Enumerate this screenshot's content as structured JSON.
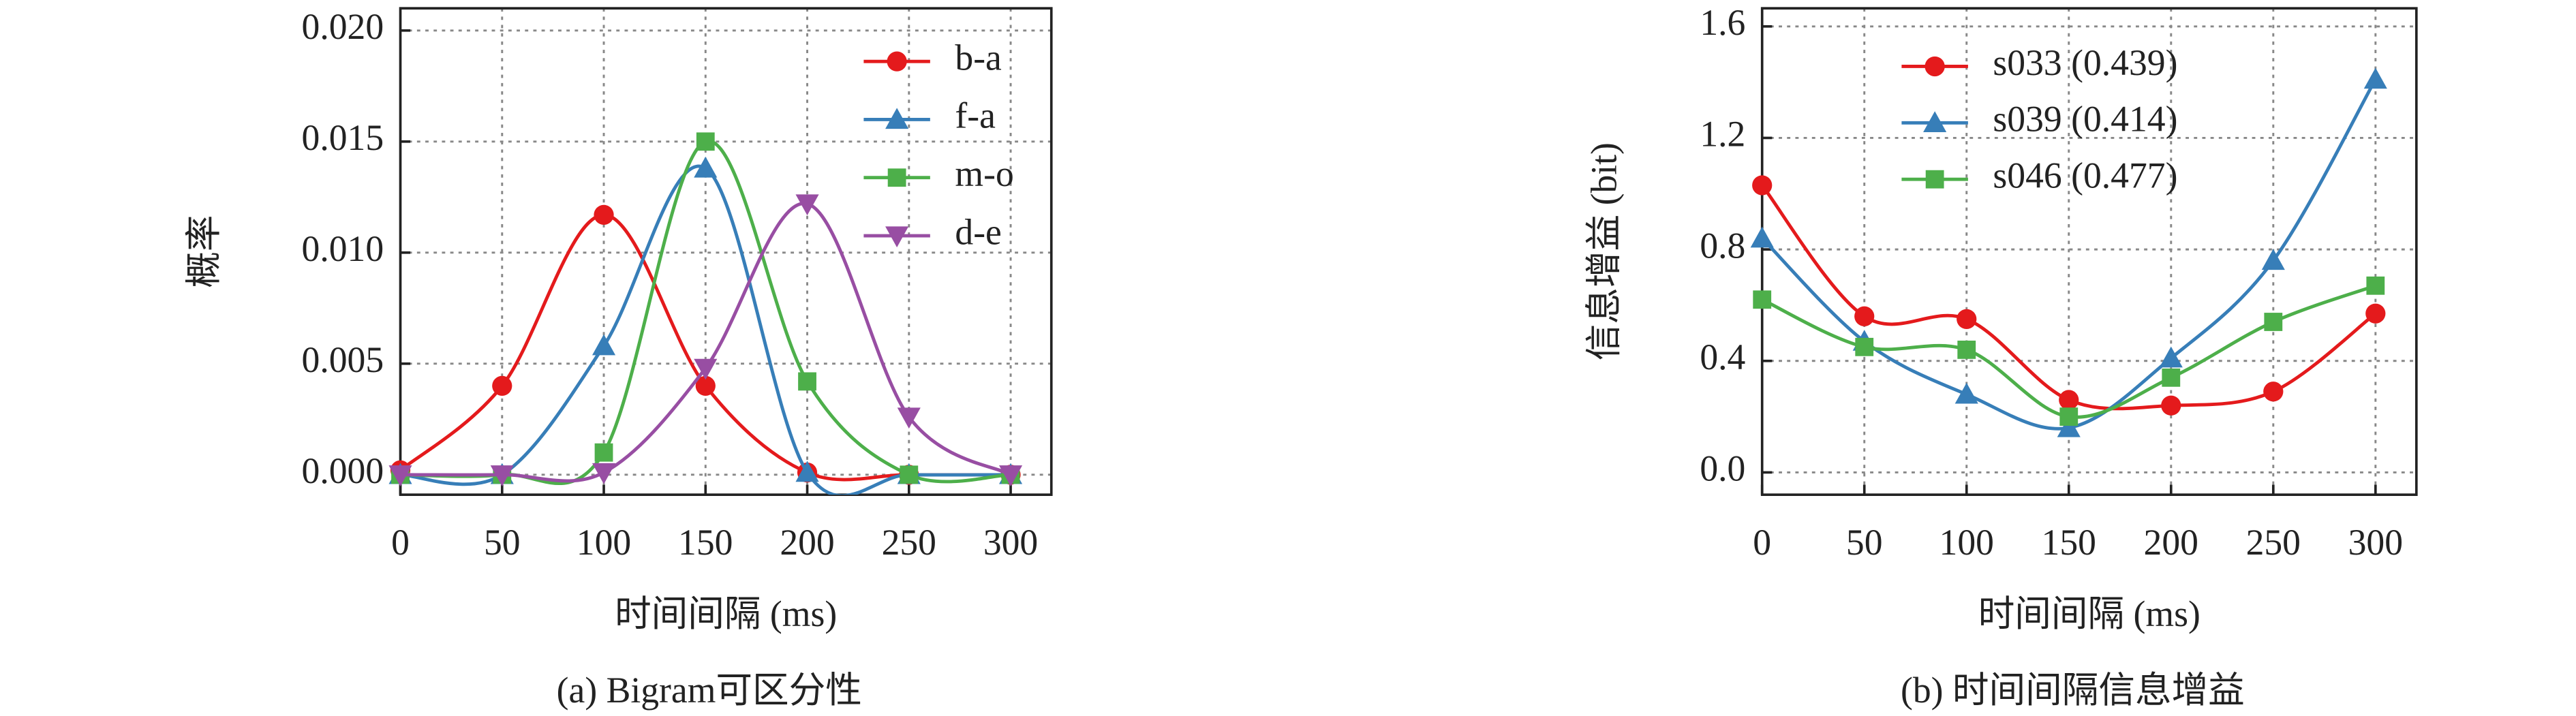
{
  "chart_data": [
    {
      "type": "line",
      "caption": "(a) Bigram可区分性",
      "xlabel": "时间间隔 (ms)",
      "ylabel": "概率",
      "x": [
        0,
        50,
        100,
        150,
        200,
        250,
        300
      ],
      "xlim": [
        0,
        320
      ],
      "xticks": [
        0,
        50,
        100,
        150,
        200,
        250,
        300
      ],
      "ylim": [
        -0.0009,
        0.021
      ],
      "yticks": [
        {
          "value": 0,
          "label": "0.000"
        },
        {
          "value": 0.005,
          "label": "0.005"
        },
        {
          "value": 0.01,
          "label": "0.010"
        },
        {
          "value": 0.015,
          "label": "0.015"
        },
        {
          "value": 0.02,
          "label": "0.020"
        }
      ],
      "grid": true,
      "legend": "upper right",
      "series": [
        {
          "name": "b-a",
          "color": "#e41a1c",
          "marker": "circle",
          "values": [
            0.0002,
            0.004,
            0.0117,
            0.004,
            0.0001,
            0,
            0
          ]
        },
        {
          "name": "f-a",
          "color": "#377eb8",
          "marker": "triangle",
          "values": [
            0,
            0,
            0.0058,
            0.0138,
            0.0001,
            0,
            0
          ]
        },
        {
          "name": "m-o",
          "color": "#4daf4a",
          "marker": "square",
          "values": [
            0,
            0,
            0.001,
            0.015,
            0.0042,
            0,
            0
          ]
        },
        {
          "name": "d-e",
          "color": "#984ea3",
          "marker": "triangle-down",
          "values": [
            0,
            0,
            0.0001,
            0.0048,
            0.0122,
            0.0026,
            0
          ]
        }
      ]
    },
    {
      "type": "line",
      "caption": "(b) 时间间隔信息增益",
      "xlabel": "时间间隔 (ms)",
      "ylabel": "信息增益 (bit)",
      "x": [
        0,
        50,
        100,
        150,
        200,
        250,
        300
      ],
      "xlim": [
        0,
        320
      ],
      "xticks": [
        0,
        50,
        100,
        150,
        200,
        250,
        300
      ],
      "ylim": [
        -0.08,
        1.665
      ],
      "yticks": [
        {
          "value": 0,
          "label": "0.0"
        },
        0.4,
        0.8,
        1.2,
        1.6
      ],
      "grid": true,
      "legend": "upper left",
      "series": [
        {
          "name": "s033 (0.439)",
          "color": "#e41a1c",
          "marker": "circle",
          "values": [
            1.03,
            0.56,
            0.55,
            0.26,
            0.24,
            0.29,
            0.57
          ]
        },
        {
          "name": "s039 (0.414)",
          "color": "#377eb8",
          "marker": "triangle",
          "values": [
            0.84,
            0.47,
            0.28,
            0.16,
            0.41,
            0.76,
            1.41
          ]
        },
        {
          "name": "s046 (0.477)",
          "color": "#4daf4a",
          "marker": "square",
          "values": [
            0.62,
            0.45,
            0.44,
            0.2,
            0.34,
            0.54,
            0.67
          ]
        }
      ]
    }
  ]
}
